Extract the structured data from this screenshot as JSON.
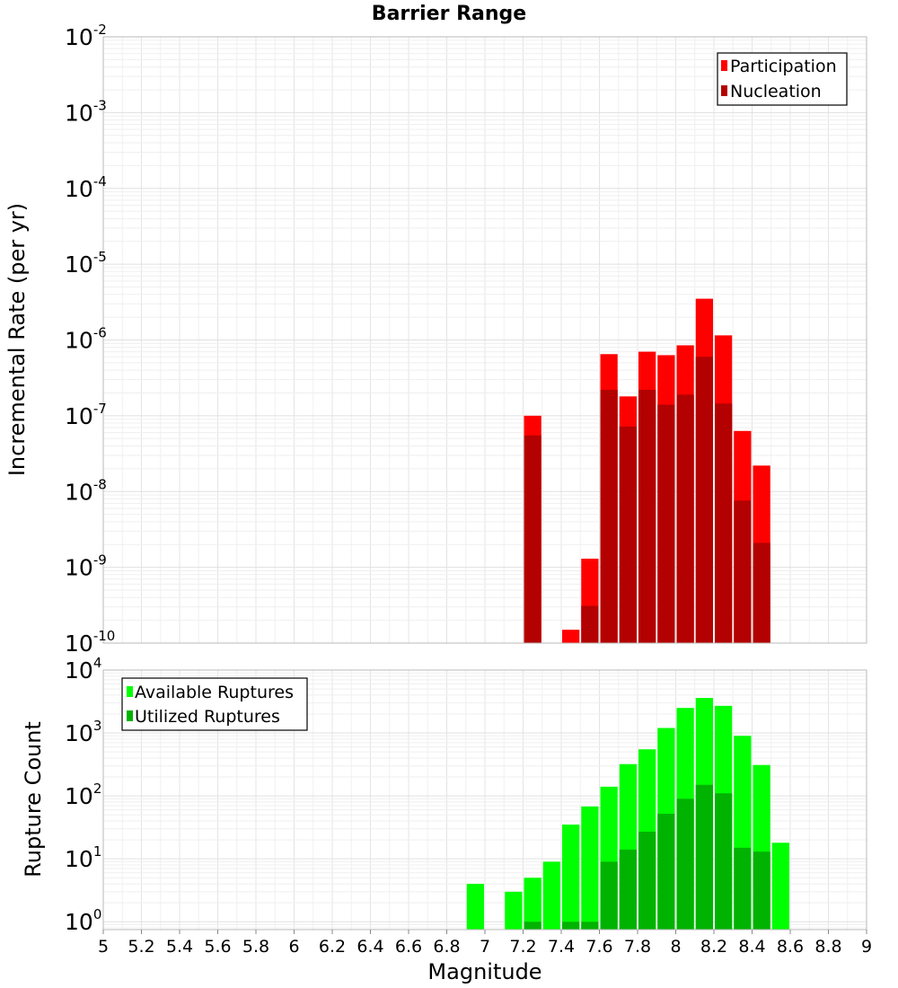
{
  "chart_data": [
    {
      "type": "bar",
      "title": "Barrier Range",
      "xlabel": "",
      "ylabel": "Incremental Rate (per yr)",
      "yscale": "log",
      "ylim": [
        1e-10,
        0.01
      ],
      "xlim": [
        5,
        9
      ],
      "y_ticks": [
        "10^-10",
        "10^-9",
        "10^-8",
        "10^-7",
        "10^-6",
        "10^-5",
        "10^-4",
        "10^-3",
        "10^-2"
      ],
      "grid": true,
      "legend_position": "top-right",
      "bin_width": 0.1,
      "series": [
        {
          "name": "Participation",
          "color": "#ff0000",
          "x": [
            7.25,
            7.45,
            7.55,
            7.65,
            7.75,
            7.85,
            7.95,
            8.05,
            8.15,
            8.25,
            8.35,
            8.45
          ],
          "values": [
            1e-07,
            1.5e-10,
            1.3e-09,
            6.5e-07,
            1.8e-07,
            7e-07,
            6.3e-07,
            8.5e-07,
            3.5e-06,
            1.15e-06,
            6.3e-08,
            2.2e-08
          ]
        },
        {
          "name": "Nucleation",
          "color": "#b30000",
          "x": [
            7.25,
            7.45,
            7.55,
            7.65,
            7.75,
            7.85,
            7.95,
            8.05,
            8.15,
            8.25,
            8.35,
            8.45
          ],
          "values": [
            5.5e-08,
            null,
            3.1e-10,
            2.2e-07,
            7.2e-08,
            2.2e-07,
            1.4e-07,
            1.9e-07,
            6e-07,
            1.45e-07,
            7.6e-09,
            2.1e-09
          ]
        }
      ]
    },
    {
      "type": "bar",
      "title": "",
      "xlabel": "Magnitude",
      "ylabel": "Rupture Count",
      "yscale": "log",
      "ylim": [
        0.75,
        10000
      ],
      "xlim": [
        5,
        9
      ],
      "x_ticks": [
        "5",
        "5.2",
        "5.4",
        "5.6",
        "5.8",
        "6",
        "6.2",
        "6.4",
        "6.6",
        "6.8",
        "7",
        "7.2",
        "7.4",
        "7.6",
        "7.8",
        "8",
        "8.2",
        "8.4",
        "8.6",
        "8.8",
        "9"
      ],
      "y_ticks": [
        "10^0",
        "10^1",
        "10^2",
        "10^3",
        "10^4"
      ],
      "grid": true,
      "legend_position": "top-left",
      "bin_width": 0.1,
      "series": [
        {
          "name": "Available Ruptures",
          "color": "#00ff00",
          "x": [
            6.95,
            7.15,
            7.25,
            7.35,
            7.45,
            7.55,
            7.65,
            7.75,
            7.85,
            7.95,
            8.05,
            8.15,
            8.25,
            8.35,
            8.45,
            8.55
          ],
          "values": [
            4,
            3,
            5,
            9,
            35,
            68,
            140,
            320,
            550,
            1200,
            2500,
            3600,
            2700,
            900,
            310,
            18
          ]
        },
        {
          "name": "Utilized Ruptures",
          "color": "#00b300",
          "x": [
            7.25,
            7.45,
            7.55,
            7.65,
            7.75,
            7.85,
            7.95,
            8.05,
            8.15,
            8.25,
            8.35,
            8.45
          ],
          "values": [
            1,
            1,
            1,
            9,
            14,
            27,
            52,
            90,
            150,
            110,
            15,
            13
          ]
        }
      ]
    }
  ]
}
